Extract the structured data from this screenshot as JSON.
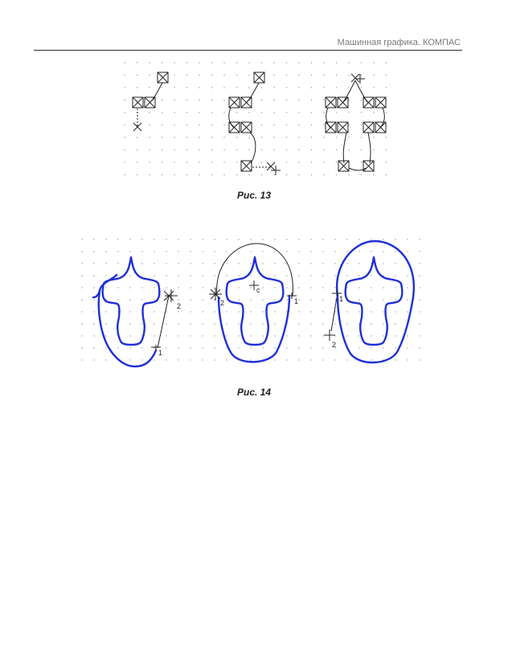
{
  "header": {
    "running_title": "Машинная графика. КОМПАС"
  },
  "figure13": {
    "caption": "Рис. 13"
  },
  "figure14": {
    "caption": "Рис. 14",
    "point_labels": {
      "left_1": "1",
      "left_2": "2",
      "mid_2": "2",
      "mid_c": "c",
      "mid_1": "1",
      "right_1": "1",
      "right_2": "2"
    }
  },
  "colors": {
    "contour": "#1f2fd6",
    "ink": "#222222",
    "grid_dot": "#9a9a9a",
    "rule": "#2b2b2b"
  }
}
